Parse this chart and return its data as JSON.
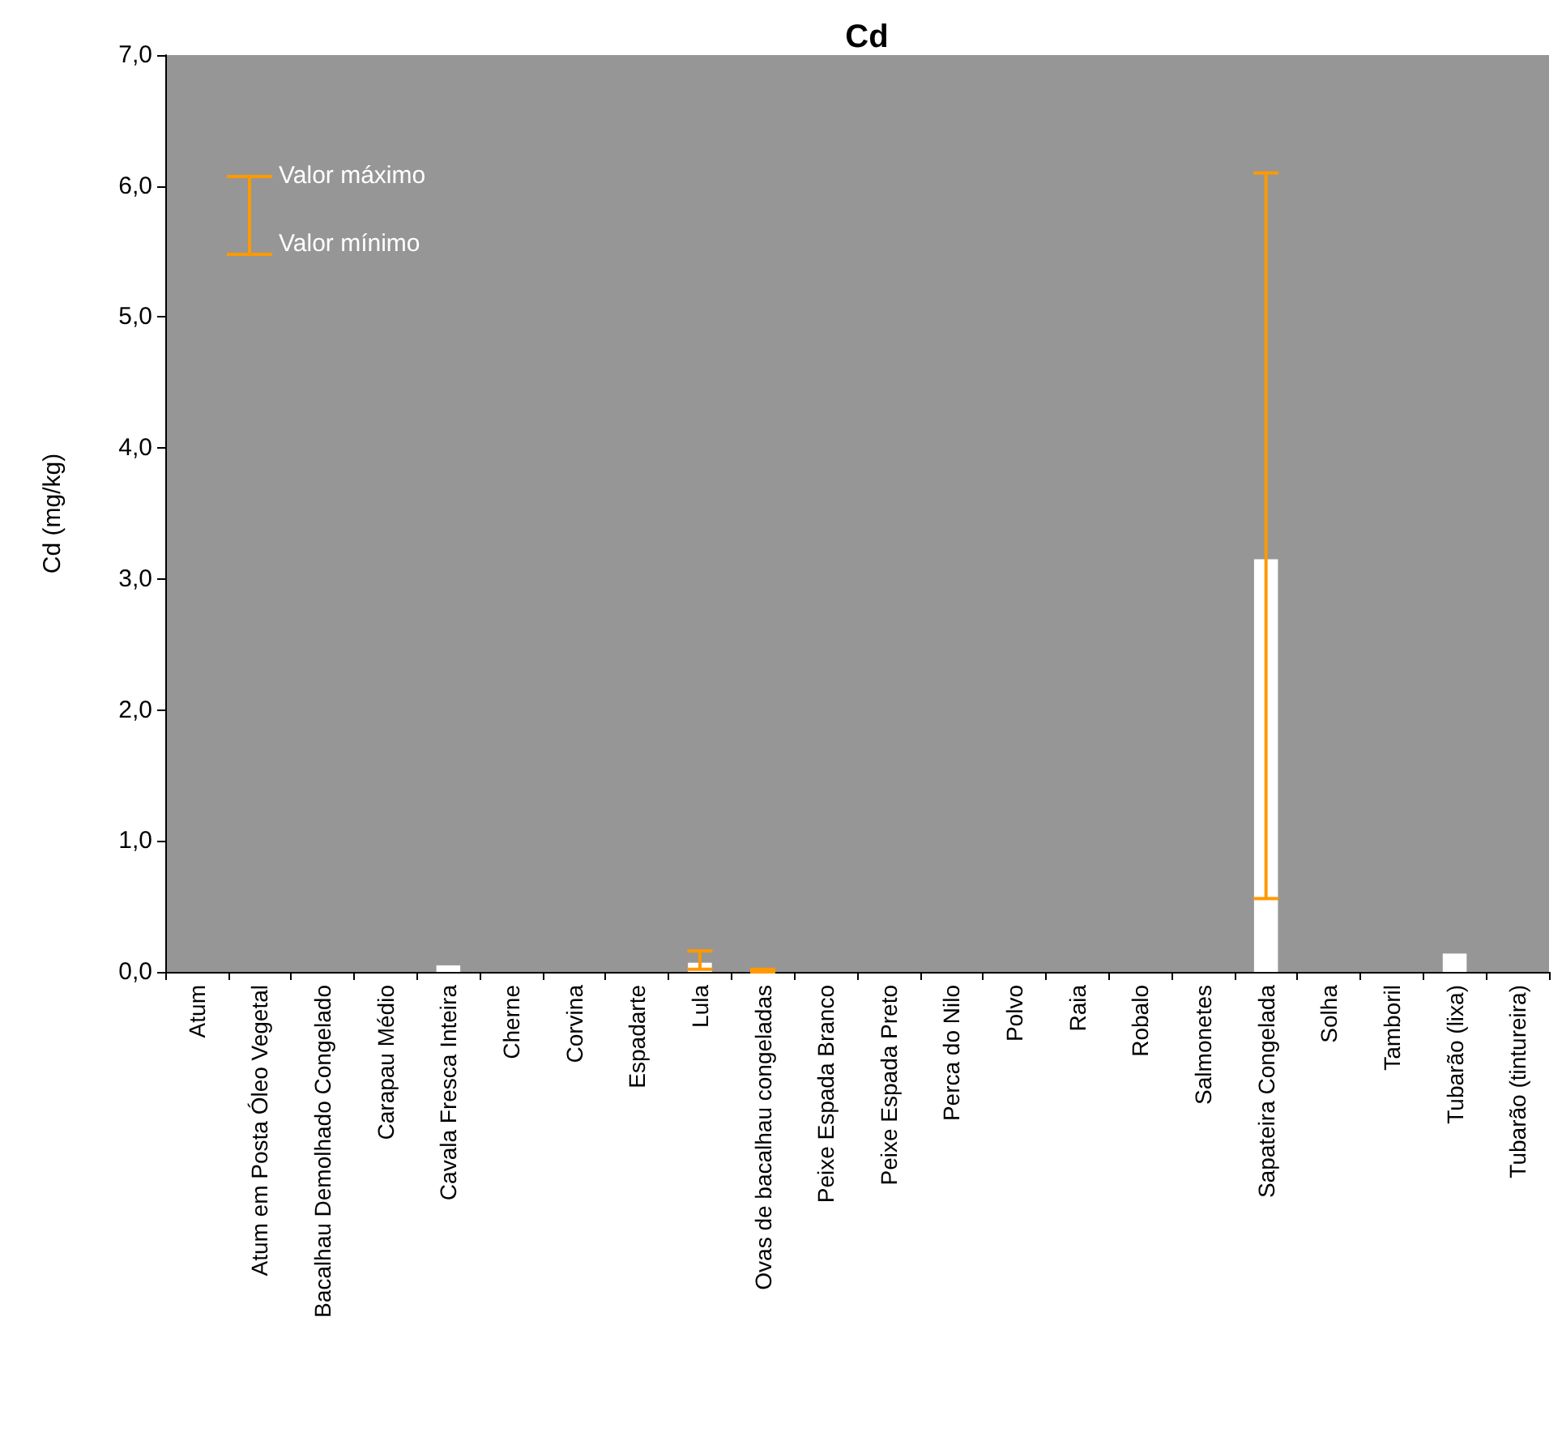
{
  "chart_data": {
    "type": "bar",
    "title": "Cd",
    "ylabel": "Cd (mg/kg)",
    "categories": [
      "Atum",
      "Atum em Posta Óleo Vegetal",
      "Bacalhau Demolhado Congelado",
      "Carapau Médio",
      "Cavala Fresca Inteira",
      "Cherne",
      "Corvina",
      "Espadarte",
      "Lula",
      "Ovas de bacalhau congeladas",
      "Peixe Espada Branco",
      "Peixe Espada Preto",
      "Perca do Nilo",
      "Polvo",
      "Raia",
      "Robalo",
      "Salmonetes",
      "Sapateira Congelada",
      "Solha",
      "Tamboril",
      "Tubarão (lixa)",
      "Tubarão (tintureira)"
    ],
    "values": [
      0,
      0,
      0,
      0,
      0.05,
      0,
      0,
      0,
      0.07,
      0.01,
      0,
      0,
      0,
      0,
      0,
      0,
      0,
      3.15,
      0,
      0,
      0.14,
      0
    ],
    "color": "#ffffff",
    "errors": [
      null,
      null,
      null,
      null,
      null,
      null,
      null,
      null,
      [
        0.02,
        0.16
      ],
      [
        0,
        0.02
      ],
      null,
      null,
      null,
      null,
      null,
      null,
      null,
      [
        0.56,
        6.1
      ],
      null,
      null,
      null,
      null
    ],
    "ylim": [
      0,
      7
    ],
    "yticks": [
      {
        "value": 0,
        "label": "0,0"
      },
      {
        "value": 1,
        "label": "1,0"
      },
      {
        "value": 2,
        "label": "2,0"
      },
      {
        "value": 3,
        "label": "3,0"
      },
      {
        "value": 4,
        "label": "4,0"
      },
      {
        "value": 5,
        "label": "5,0"
      },
      {
        "value": 6,
        "label": "6,0"
      },
      {
        "value": 7,
        "label": "7,0"
      }
    ],
    "annotations": [
      "Valor máximo",
      "Valor mínimo"
    ],
    "grid": false
  }
}
